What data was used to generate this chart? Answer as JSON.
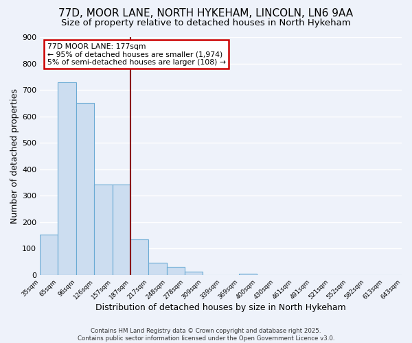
{
  "title": "77D, MOOR LANE, NORTH HYKEHAM, LINCOLN, LN6 9AA",
  "subtitle": "Size of property relative to detached houses in North Hykeham",
  "xlabel": "Distribution of detached houses by size in North Hykeham",
  "ylabel": "Number of detached properties",
  "bar_values": [
    152,
    728,
    651,
    343,
    343,
    135,
    46,
    30,
    12,
    0,
    0,
    5,
    0,
    0,
    0,
    0,
    0,
    0,
    0,
    0
  ],
  "bin_labels": [
    "35sqm",
    "65sqm",
    "96sqm",
    "126sqm",
    "157sqm",
    "187sqm",
    "217sqm",
    "248sqm",
    "278sqm",
    "309sqm",
    "339sqm",
    "369sqm",
    "400sqm",
    "430sqm",
    "461sqm",
    "491sqm",
    "521sqm",
    "552sqm",
    "582sqm",
    "613sqm",
    "643sqm"
  ],
  "bar_color": "#ccddf0",
  "bar_edge_color": "#6aaad4",
  "vline_bin": 5,
  "vline_color": "#8b0000",
  "ylim": [
    0,
    900
  ],
  "yticks": [
    0,
    100,
    200,
    300,
    400,
    500,
    600,
    700,
    800,
    900
  ],
  "annotation_title": "77D MOOR LANE: 177sqm",
  "annotation_line1": "← 95% of detached houses are smaller (1,974)",
  "annotation_line2": "5% of semi-detached houses are larger (108) →",
  "annotation_box_color": "#ffffff",
  "annotation_box_edge": "#cc0000",
  "footer1": "Contains HM Land Registry data © Crown copyright and database right 2025.",
  "footer2": "Contains public sector information licensed under the Open Government Licence v3.0.",
  "background_color": "#eef2fa",
  "grid_color": "#ffffff",
  "title_fontsize": 11,
  "subtitle_fontsize": 9.5
}
